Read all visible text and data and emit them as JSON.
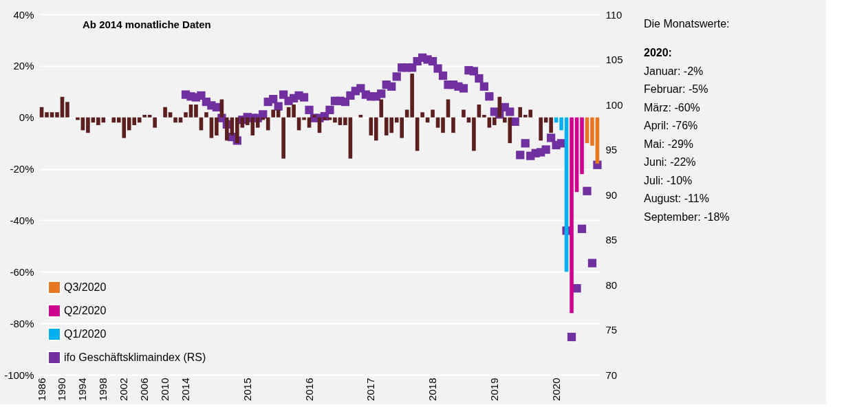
{
  "chart_data": {
    "type": "bar",
    "categories": [
      "1986",
      null,
      null,
      null,
      "1990",
      null,
      null,
      null,
      "1994",
      null,
      null,
      null,
      "1998",
      null,
      null,
      null,
      "2002",
      null,
      null,
      null,
      "2006",
      null,
      null,
      null,
      "2010",
      null,
      null,
      null,
      "2014",
      null,
      null,
      null,
      null,
      null,
      null,
      null,
      null,
      null,
      null,
      null,
      "2015",
      null,
      null,
      null,
      null,
      null,
      null,
      null,
      null,
      null,
      null,
      null,
      "2016",
      null,
      null,
      null,
      null,
      null,
      null,
      null,
      null,
      null,
      null,
      null,
      "2017",
      null,
      null,
      null,
      null,
      null,
      null,
      null,
      null,
      null,
      null,
      null,
      "2018",
      null,
      null,
      null,
      null,
      null,
      null,
      null,
      null,
      null,
      null,
      null,
      "2019",
      null,
      null,
      null,
      null,
      null,
      null,
      null,
      null,
      null,
      null,
      null,
      "2020",
      null,
      null,
      null,
      null,
      null,
      null,
      null,
      null
    ],
    "series": [
      {
        "name": "Q3/2020",
        "color": "#e87722",
        "values": [
          null,
          null,
          null,
          null,
          null,
          null,
          null,
          null,
          null,
          null,
          null,
          null,
          null,
          null,
          null,
          null,
          null,
          null,
          null,
          null,
          null,
          null,
          null,
          null,
          null,
          null,
          null,
          null,
          null,
          null,
          null,
          null,
          null,
          null,
          null,
          null,
          null,
          null,
          null,
          null,
          null,
          null,
          null,
          null,
          null,
          null,
          null,
          null,
          null,
          null,
          null,
          null,
          null,
          null,
          null,
          null,
          null,
          null,
          null,
          null,
          null,
          null,
          null,
          null,
          null,
          null,
          null,
          null,
          null,
          null,
          null,
          null,
          null,
          null,
          null,
          null,
          null,
          null,
          null,
          null,
          null,
          null,
          null,
          null,
          null,
          null,
          null,
          null,
          null,
          null,
          null,
          null,
          null,
          null,
          null,
          null,
          null,
          null,
          null,
          null,
          null,
          null,
          null,
          null,
          null,
          null,
          -10,
          -11,
          -18
        ]
      },
      {
        "name": "Q2/2020",
        "color": "#d0008f",
        "values": [
          null,
          null,
          null,
          null,
          null,
          null,
          null,
          null,
          null,
          null,
          null,
          null,
          null,
          null,
          null,
          null,
          null,
          null,
          null,
          null,
          null,
          null,
          null,
          null,
          null,
          null,
          null,
          null,
          null,
          null,
          null,
          null,
          null,
          null,
          null,
          null,
          null,
          null,
          null,
          null,
          null,
          null,
          null,
          null,
          null,
          null,
          null,
          null,
          null,
          null,
          null,
          null,
          null,
          null,
          null,
          null,
          null,
          null,
          null,
          null,
          null,
          null,
          null,
          null,
          null,
          null,
          null,
          null,
          null,
          null,
          null,
          null,
          null,
          null,
          null,
          null,
          null,
          null,
          null,
          null,
          null,
          null,
          null,
          null,
          null,
          null,
          null,
          null,
          null,
          null,
          null,
          null,
          null,
          null,
          null,
          null,
          null,
          null,
          null,
          null,
          null,
          null,
          null,
          -76,
          -29,
          -22,
          null,
          null,
          null
        ]
      },
      {
        "name": "Q1/2020",
        "color": "#00b0f0",
        "values": [
          null,
          null,
          null,
          null,
          null,
          null,
          null,
          null,
          null,
          null,
          null,
          null,
          null,
          null,
          null,
          null,
          null,
          null,
          null,
          null,
          null,
          null,
          null,
          null,
          null,
          null,
          null,
          null,
          null,
          null,
          null,
          null,
          null,
          null,
          null,
          null,
          null,
          null,
          null,
          null,
          null,
          null,
          null,
          null,
          null,
          null,
          null,
          null,
          null,
          null,
          null,
          null,
          null,
          null,
          null,
          null,
          null,
          null,
          null,
          null,
          null,
          null,
          null,
          null,
          null,
          null,
          null,
          null,
          null,
          null,
          null,
          null,
          null,
          null,
          null,
          null,
          null,
          null,
          null,
          null,
          null,
          null,
          null,
          null,
          null,
          null,
          null,
          null,
          null,
          null,
          null,
          null,
          null,
          null,
          null,
          null,
          null,
          null,
          null,
          null,
          -2,
          -5,
          -60,
          null,
          null,
          null,
          null,
          null,
          null
        ]
      },
      {
        "name": "ifo Geschäftsklimaindex (RS)",
        "type": "scatter",
        "axis": "y2",
        "marker": "square",
        "color": "#7030a0",
        "values": [
          null,
          null,
          null,
          null,
          null,
          null,
          null,
          null,
          null,
          null,
          null,
          null,
          null,
          null,
          null,
          null,
          null,
          null,
          null,
          null,
          null,
          null,
          null,
          null,
          null,
          null,
          null,
          null,
          101.1,
          100.9,
          100.8,
          101.0,
          100.3,
          99.9,
          99.7,
          98.5,
          97.8,
          96.4,
          96.0,
          98.3,
          98.6,
          98.5,
          98.5,
          98.9,
          100.3,
          100.6,
          99.8,
          101.1,
          100.4,
          100.7,
          101.0,
          100.8,
          99.4,
          98.5,
          98.5,
          98.7,
          99.4,
          100.4,
          100.4,
          100.3,
          101.0,
          101.5,
          101.8,
          101.1,
          100.9,
          100.9,
          101.2,
          102.2,
          102.0,
          103.1,
          104.1,
          104.1,
          104.1,
          104.8,
          105.2,
          105.0,
          104.8,
          104.0,
          103.2,
          102.2,
          102.2,
          102.0,
          101.8,
          103.8,
          103.7,
          102.9,
          102.0,
          100.9,
          99.2,
          98.9,
          99.7,
          99.2,
          98.1,
          94.4,
          95.7,
          94.3,
          94.6,
          94.7,
          95.0,
          96.3,
          95.5,
          95.7,
          86.0,
          74.2,
          79.6,
          86.2,
          90.4,
          82.4,
          93.3
        ]
      },
      {
        "color": "#5c1f1f",
        "values": [
          4,
          2,
          2,
          2,
          8,
          6,
          null,
          -1,
          -5,
          -6,
          -2,
          -3,
          -2,
          null,
          -2,
          -2,
          -8,
          -5,
          -3,
          -2,
          1,
          1,
          -4,
          null,
          4,
          2,
          -2,
          -2,
          2,
          5,
          5,
          -5,
          2,
          -8,
          -7,
          7,
          -9,
          -7,
          -10,
          -4,
          -3,
          -7,
          -4,
          -1,
          -5,
          3,
          3,
          -16,
          4,
          5,
          -5,
          -1,
          -4,
          1,
          -6,
          -1,
          -1,
          -2,
          -3,
          -3,
          -16,
          null,
          1,
          null,
          -7,
          -9,
          7,
          -7,
          -6,
          -2,
          -8,
          3,
          17,
          -13,
          2,
          -2,
          3,
          -4,
          -6,
          7,
          -6,
          null,
          3,
          -2,
          -13,
          5,
          1,
          -4,
          -3,
          8,
          -2,
          -10,
          null,
          4,
          1,
          3,
          null,
          -9,
          -2,
          -6,
          null,
          null,
          null,
          null,
          null,
          null,
          null,
          null,
          null
        ]
      }
    ],
    "ylim": [
      -100,
      40
    ],
    "yticks": [
      {
        "value": -100,
        "label": "-100%"
      },
      {
        "value": -80,
        "label": "-80%"
      },
      {
        "value": -60,
        "label": "-60%"
      },
      {
        "value": -40,
        "label": "-40%"
      },
      {
        "value": -20,
        "label": "-20%"
      },
      {
        "value": 0,
        "label": "0%"
      },
      {
        "value": 20,
        "label": "20%"
      },
      {
        "value": 40,
        "label": "40%"
      }
    ],
    "y2lim": [
      70,
      110
    ],
    "y2ticks": [
      70,
      75,
      80,
      85,
      90,
      95,
      100,
      105,
      110
    ],
    "grid": "y",
    "legend": "bottom left",
    "annotations": [
      "Ab 2014 monatliche Daten",
      "Die Monatswerte:",
      "2020:",
      "Januar: -2%",
      "Februar: -5%",
      "März: -60%",
      "April: -76%",
      "Mai: -29%",
      "Juni: -22%",
      "Juli: -10%",
      "August: -11%",
      "September: -18%"
    ]
  }
}
